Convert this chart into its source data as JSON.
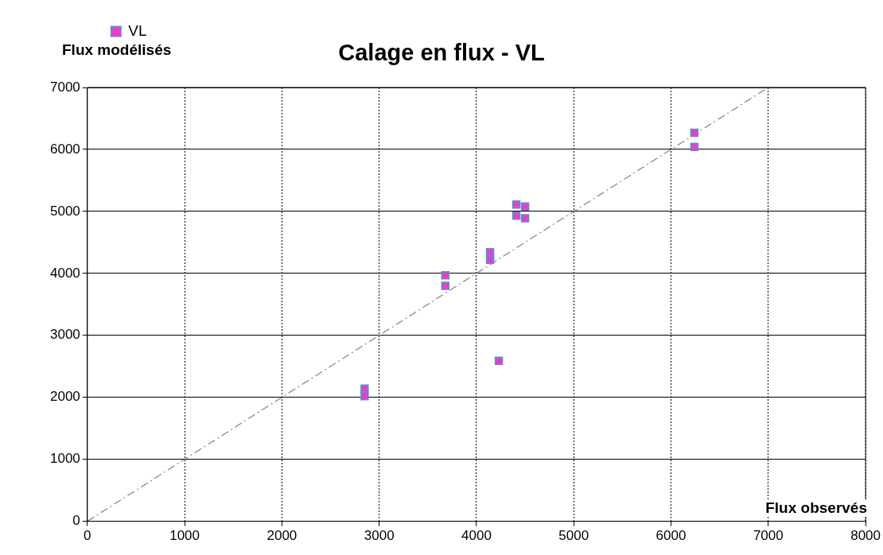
{
  "chart_data": {
    "type": "scatter",
    "title": "Calage en flux - VL",
    "xlabel": "Flux observés",
    "ylabel": "Flux modélisés",
    "xlim": [
      0,
      8000
    ],
    "ylim": [
      0,
      7000
    ],
    "xticks": [
      0,
      1000,
      2000,
      3000,
      4000,
      5000,
      6000,
      7000,
      8000
    ],
    "yticks": [
      0,
      1000,
      2000,
      3000,
      4000,
      5000,
      6000,
      7000
    ],
    "grid": true,
    "legend": "top left",
    "marker": "square",
    "series": [
      {
        "name": "VL",
        "color": "#ff33cc",
        "x": [
          2850,
          2850,
          3680,
          3680,
          4140,
          4140,
          4230,
          4410,
          4410,
          4500,
          4500,
          6240,
          6240
        ],
        "values": [
          2140,
          2020,
          3970,
          3800,
          4340,
          4220,
          2590,
          5110,
          4930,
          5080,
          4890,
          6270,
          6040
        ]
      },
      {
        "type": "line",
        "color": "#808080",
        "line_style": "dashed",
        "marker": "none",
        "x": [
          0,
          7000
        ],
        "values": [
          0,
          7000
        ]
      }
    ]
  }
}
